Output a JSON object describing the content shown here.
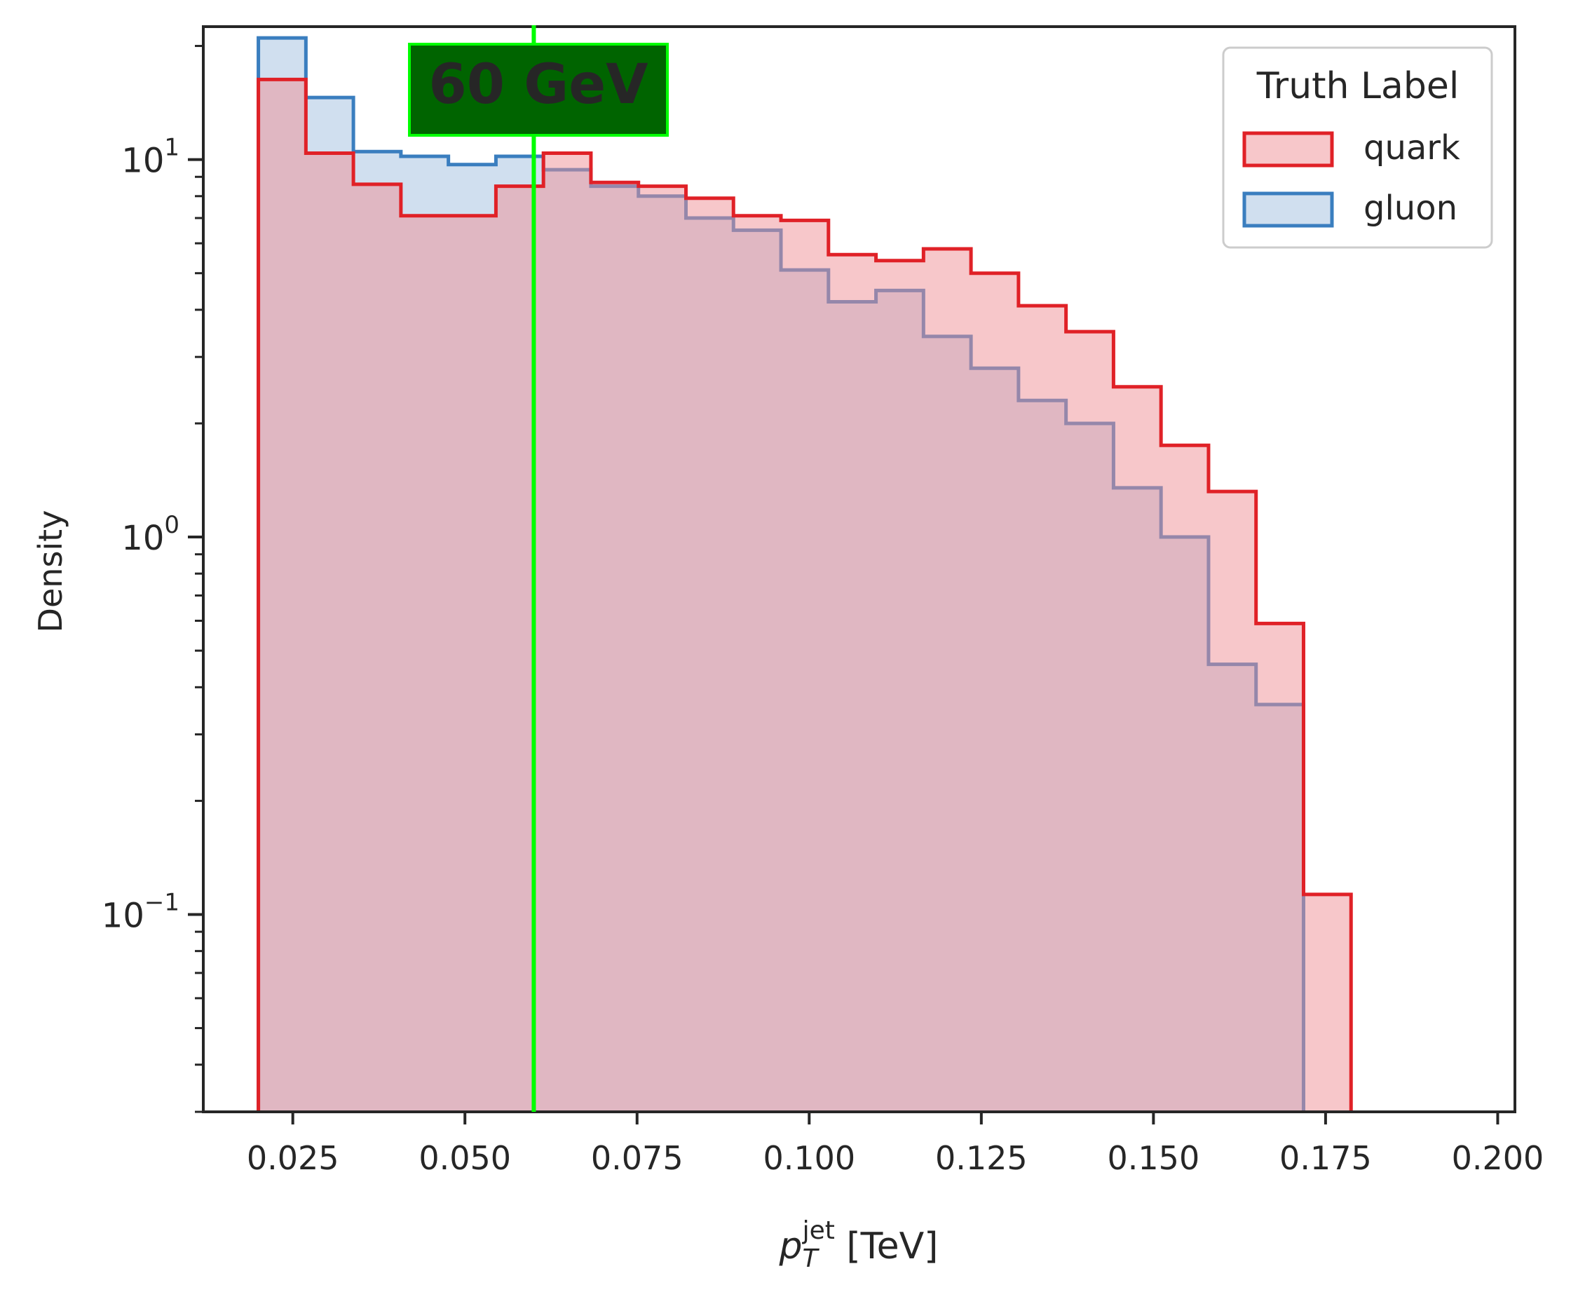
{
  "chart_data": {
    "type": "histogram",
    "title": "",
    "xlabel": {
      "base": "p",
      "sub": "T",
      "sup": "jet",
      "unit": " [TeV]"
    },
    "ylabel": "Density",
    "xlim": [
      0.012,
      0.2025
    ],
    "ylim": [
      0.03,
      22.5
    ],
    "yscale": "log",
    "grid": false,
    "x_ticks": [
      0.025,
      0.05,
      0.075,
      0.1,
      0.125,
      0.15,
      0.175,
      0.2
    ],
    "x_tick_labels": [
      "0.025",
      "0.050",
      "0.075",
      "0.100",
      "0.125",
      "0.150",
      "0.175",
      "0.200"
    ],
    "y_ticks": [
      {
        "value": 10,
        "base": "10",
        "exp": "1"
      },
      {
        "value": 1,
        "base": "10",
        "exp": "0"
      },
      {
        "value": 0.1,
        "base": "10",
        "exp": "−1"
      }
    ],
    "bin_edges": [
      0.02,
      0.0269,
      0.0338,
      0.0407,
      0.0476,
      0.0545,
      0.0614,
      0.0683,
      0.0752,
      0.0821,
      0.089,
      0.0959,
      0.1028,
      0.1097,
      0.1166,
      0.1235,
      0.1304,
      0.1373,
      0.1442,
      0.1511,
      0.158,
      0.1649,
      0.1718,
      0.1787
    ],
    "series": [
      {
        "name": "gluon",
        "edge_color": "#3a7ebf",
        "fill_color": "#a9c4e2",
        "fill_opacity": 0.55,
        "values": [
          21.0,
          14.6,
          10.5,
          10.2,
          9.7,
          10.2,
          9.4,
          8.5,
          8.0,
          7.0,
          6.5,
          5.1,
          4.2,
          4.5,
          3.4,
          2.8,
          2.3,
          2.0,
          1.35,
          1.0,
          0.46,
          0.36,
          0.0
        ]
      },
      {
        "name": "quark",
        "edge_color": "#e02127",
        "fill_color": "#ef8f95",
        "fill_opacity": 0.5,
        "values": [
          16.3,
          10.4,
          8.6,
          7.1,
          7.1,
          8.5,
          10.4,
          8.7,
          8.5,
          7.9,
          7.1,
          6.9,
          5.6,
          5.4,
          5.8,
          5.0,
          4.1,
          3.5,
          2.5,
          1.75,
          1.32,
          0.59,
          0.113
        ]
      }
    ],
    "legend": {
      "title": "Truth Label",
      "placement": "upper right",
      "entries": [
        "quark",
        "gluon"
      ]
    },
    "annotation": {
      "text": "60 GeV",
      "x": 0.06,
      "text_color": "#00ff00",
      "box_fill": "#006400",
      "line_color": "#00ff00"
    }
  }
}
